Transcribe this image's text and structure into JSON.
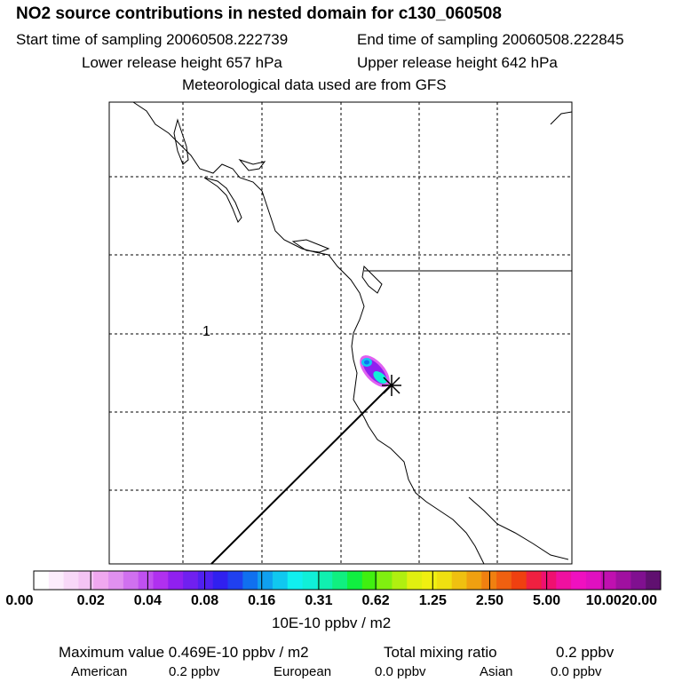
{
  "header": {
    "title": "NO2 source contributions in nested domain for c130_060508",
    "start_label": "Start time of sampling 20060508.222739",
    "end_label": "End time of sampling 20060508.222845",
    "lower_label": "Lower release height  657 hPa",
    "upper_label": "Upper release height  642 hPa",
    "met_label": "Meteorological data used are from GFS"
  },
  "map": {
    "contour_label": "1",
    "colors": {
      "border": "#000000",
      "grid": "#000000"
    }
  },
  "colorbar": {
    "labels": [
      "0.00",
      "0.02",
      "0.04",
      "0.08",
      "0.16",
      "0.31",
      "0.62",
      "1.25",
      "2.50",
      "5.00",
      "10.00",
      "20.00"
    ],
    "colors": [
      "#ffffff",
      "#fcecfc",
      "#f8d8f8",
      "#f4c4f4",
      "#f0a8f0",
      "#e090f0",
      "#d070f0",
      "#c050f0",
      "#b030f0",
      "#9020f0",
      "#7020f0",
      "#5020f0",
      "#3020f0",
      "#2040f0",
      "#1070f0",
      "#10a0f0",
      "#10c8f0",
      "#10f0f0",
      "#10f0d8",
      "#10f0b0",
      "#10f080",
      "#10f040",
      "#40f010",
      "#80f010",
      "#b0f010",
      "#e0f010",
      "#f0f010",
      "#f0e010",
      "#f0c010",
      "#f0a010",
      "#f08010",
      "#f06010",
      "#f04010",
      "#f02040",
      "#f01070",
      "#f010a0",
      "#f010c0",
      "#e010c0",
      "#c010b0",
      "#a010a0",
      "#801090",
      "#601070"
    ],
    "units": "10E-10 ppbv / m2"
  },
  "summary": {
    "max_value": "Maximum value  0.469E-10 ppbv / m2",
    "total_label": "Total mixing ratio",
    "total_value": "0.2 ppbv",
    "american_label": "American",
    "american_value": "0.2 ppbv",
    "european_label": "European",
    "european_value": "0.0 ppbv",
    "asian_label": "Asian",
    "asian_value": "0.0 ppbv"
  }
}
